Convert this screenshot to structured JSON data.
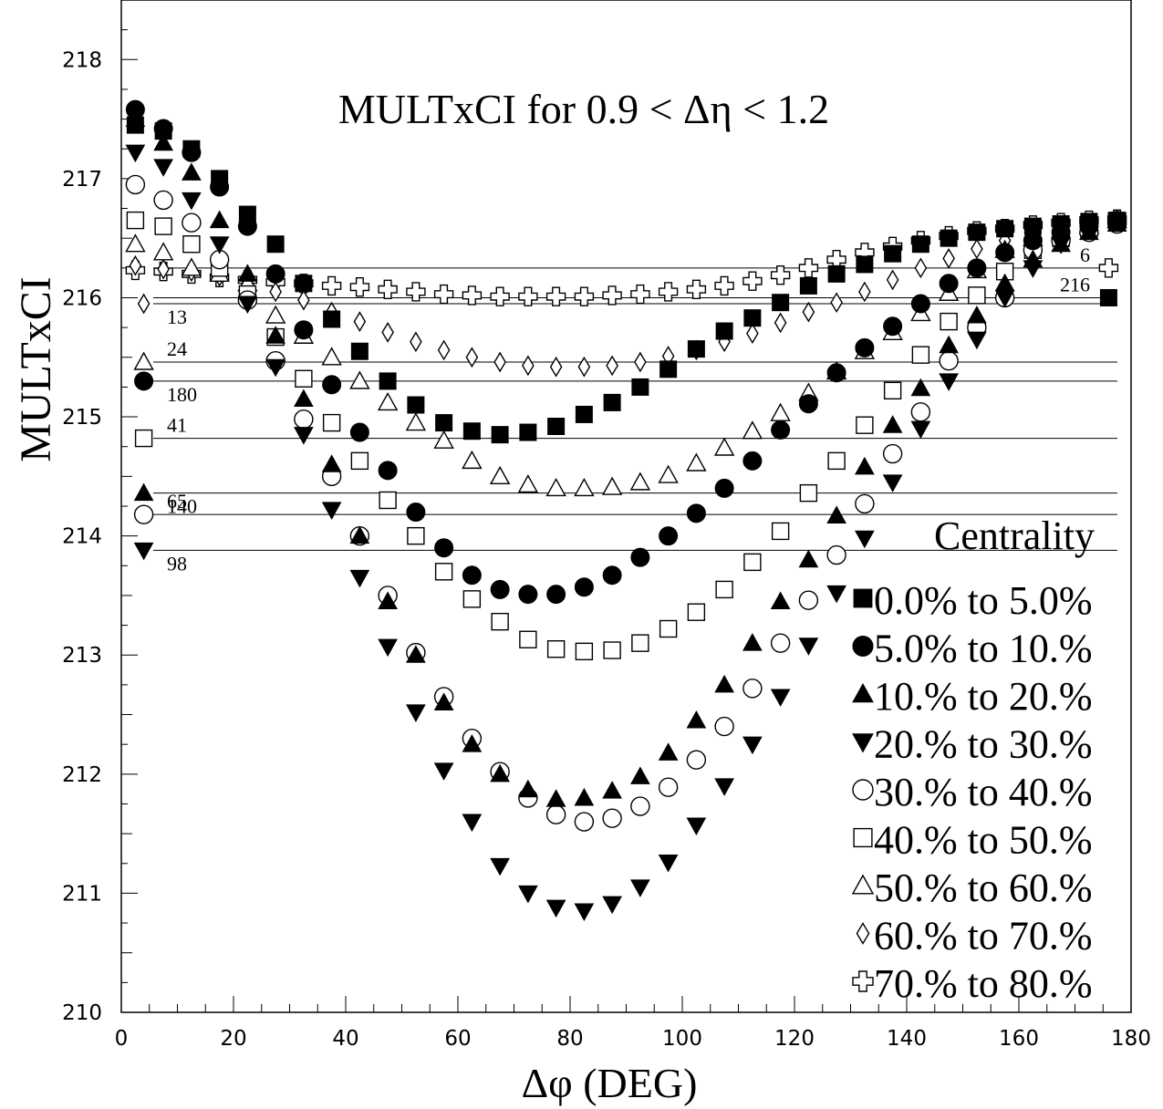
{
  "chart_data": {
    "type": "scatter",
    "title": "MULTxCI  for  0.9 < Δη < 1.2",
    "xlabel": "Δφ (DEG)",
    "ylabel": "MULTxCI",
    "xlim": [
      0,
      180
    ],
    "ylim": [
      210,
      218.5
    ],
    "x_ticks": [
      "0",
      "20",
      "40",
      "60",
      "80",
      "100",
      "120",
      "140",
      "160",
      "180"
    ],
    "y_ticks": [
      "210",
      "211",
      "212",
      "213",
      "214",
      "215",
      "216",
      "217",
      "218"
    ],
    "grid": false,
    "legend_title": "Centrality",
    "legend_position": "bottom-right",
    "x": [
      2.5,
      7.5,
      12.5,
      17.5,
      22.5,
      27.5,
      32.5,
      37.5,
      42.5,
      47.5,
      52.5,
      57.5,
      62.5,
      67.5,
      72.5,
      77.5,
      82.5,
      87.5,
      92.5,
      97.5,
      102.5,
      107.5,
      112.5,
      117.5,
      122.5,
      127.5,
      132.5,
      137.5,
      142.5,
      147.5,
      152.5,
      157.5,
      162.5,
      167.5,
      172.5,
      177.5
    ],
    "series": [
      {
        "name": "0.0% to 5.0%",
        "marker": "square-filled",
        "values": [
          217.45,
          217.4,
          217.25,
          217.0,
          216.7,
          216.45,
          216.12,
          215.82,
          215.55,
          215.3,
          215.1,
          214.95,
          214.88,
          214.85,
          214.87,
          214.92,
          215.02,
          215.12,
          215.25,
          215.4,
          215.57,
          215.72,
          215.83,
          215.96,
          216.1,
          216.2,
          216.28,
          216.37,
          216.45,
          216.5,
          216.55,
          216.58,
          216.6,
          216.62,
          216.64,
          216.65
        ]
      },
      {
        "name": "5.0% to 10.%",
        "marker": "circle-filled",
        "values": [
          217.58,
          217.42,
          217.22,
          216.93,
          216.6,
          216.2,
          215.73,
          215.27,
          214.87,
          214.55,
          214.2,
          213.9,
          213.67,
          213.55,
          213.51,
          213.51,
          213.57,
          213.67,
          213.82,
          214.0,
          214.19,
          214.4,
          214.63,
          214.89,
          215.11,
          215.37,
          215.58,
          215.76,
          215.95,
          216.12,
          216.25,
          216.38,
          216.48,
          216.55,
          216.6,
          216.65
        ]
      },
      {
        "name": "10.% to 20.%",
        "marker": "triangle-up-filled",
        "values": [
          217.5,
          217.3,
          217.05,
          216.65,
          216.2,
          215.68,
          215.15,
          214.6,
          214.0,
          213.45,
          213.0,
          212.6,
          212.25,
          212.0,
          211.87,
          211.79,
          211.8,
          211.86,
          211.98,
          212.18,
          212.45,
          212.75,
          213.1,
          213.45,
          213.8,
          214.17,
          214.58,
          214.93,
          215.24,
          215.6,
          215.85,
          216.12,
          216.32,
          216.45,
          216.55,
          216.62
        ]
      },
      {
        "name": "20.% to 30.%",
        "marker": "triangle-down-filled",
        "values": [
          217.22,
          217.1,
          216.82,
          216.45,
          215.95,
          215.42,
          214.85,
          214.22,
          213.65,
          213.07,
          212.52,
          212.03,
          211.6,
          211.23,
          211.0,
          210.88,
          210.85,
          210.91,
          211.05,
          211.26,
          211.57,
          211.9,
          212.25,
          212.65,
          213.08,
          213.52,
          213.98,
          214.45,
          214.9,
          215.3,
          215.65,
          216.0,
          216.25,
          216.45,
          216.58,
          216.65
        ]
      },
      {
        "name": "30.% to 40.%",
        "marker": "circle-open",
        "values": [
          216.95,
          216.82,
          216.63,
          216.32,
          215.98,
          215.47,
          214.98,
          214.5,
          214.0,
          213.5,
          213.02,
          212.65,
          212.3,
          212.02,
          211.8,
          211.66,
          211.6,
          211.63,
          211.73,
          211.89,
          212.12,
          212.4,
          212.72,
          213.1,
          213.46,
          213.84,
          214.27,
          214.69,
          215.04,
          215.47,
          215.75,
          216.0,
          216.4,
          216.48,
          216.55,
          216.62
        ]
      },
      {
        "name": "40.% to 50.%",
        "marker": "square-open",
        "values": [
          216.65,
          216.6,
          216.45,
          216.25,
          216.03,
          215.67,
          215.32,
          214.95,
          214.63,
          214.3,
          214.0,
          213.7,
          213.47,
          213.28,
          213.13,
          213.05,
          213.03,
          213.04,
          213.1,
          213.22,
          213.36,
          213.55,
          213.78,
          214.04,
          214.36,
          214.63,
          214.93,
          215.22,
          215.52,
          215.8,
          216.02,
          216.22,
          216.4,
          216.5,
          216.58,
          216.63
        ]
      },
      {
        "name": "50.% to 60.%",
        "marker": "triangle-up-open",
        "values": [
          216.45,
          216.38,
          216.25,
          216.2,
          216.12,
          215.85,
          215.68,
          215.5,
          215.3,
          215.12,
          214.95,
          214.8,
          214.63,
          214.5,
          214.43,
          214.4,
          214.4,
          214.41,
          214.45,
          214.51,
          214.61,
          214.74,
          214.88,
          215.03,
          215.2,
          215.38,
          215.55,
          215.71,
          215.87,
          216.04,
          216.23,
          216.4,
          216.5,
          216.56,
          216.6,
          216.65
        ]
      },
      {
        "name": "60.% to 70.%",
        "marker": "diamond-open",
        "values": [
          216.27,
          216.24,
          216.22,
          216.18,
          216.12,
          216.05,
          215.98,
          215.88,
          215.8,
          215.71,
          215.63,
          215.56,
          215.5,
          215.46,
          215.43,
          215.42,
          215.42,
          215.43,
          215.46,
          215.51,
          215.56,
          215.63,
          215.7,
          215.79,
          215.88,
          215.96,
          216.05,
          216.15,
          216.25,
          216.33,
          216.41,
          216.48,
          216.52,
          216.56,
          216.6,
          216.65
        ]
      },
      {
        "name": "70.% to 80.%",
        "marker": "cross-open",
        "values": [
          216.23,
          216.22,
          216.2,
          216.17,
          216.15,
          216.13,
          216.12,
          216.1,
          216.09,
          216.07,
          216.05,
          216.03,
          216.02,
          216.01,
          216.01,
          216.01,
          216.01,
          216.02,
          216.03,
          216.05,
          216.07,
          216.1,
          216.14,
          216.19,
          216.25,
          216.32,
          216.38,
          216.43,
          216.48,
          216.52,
          216.56,
          216.58,
          216.61,
          216.63,
          216.65,
          216.66
        ]
      }
    ],
    "extra_points": [
      {
        "x": 4,
        "y": 215.95,
        "marker": "diamond-open"
      },
      {
        "x": 4,
        "y": 215.46,
        "marker": "triangle-up-open"
      },
      {
        "x": 4,
        "y": 215.3,
        "marker": "circle-filled"
      },
      {
        "x": 4,
        "y": 214.82,
        "marker": "square-open"
      },
      {
        "x": 4,
        "y": 214.36,
        "marker": "triangle-up-filled"
      },
      {
        "x": 4,
        "y": 214.18,
        "marker": "circle-open"
      },
      {
        "x": 4,
        "y": 213.88,
        "marker": "triangle-down-filled"
      },
      {
        "x": 176,
        "y": 216.25,
        "marker": "cross-open"
      },
      {
        "x": 176,
        "y": 216.0,
        "marker": "square-filled"
      }
    ],
    "reference_lines": [
      {
        "y": 216.25,
        "label": "6",
        "label_side": "right"
      },
      {
        "y": 216.0,
        "label": "216",
        "label_side": "right"
      },
      {
        "y": 215.95,
        "label": "13",
        "label_side": "left"
      },
      {
        "y": 215.46,
        "label": "24",
        "label_side": "left"
      },
      {
        "y": 215.3,
        "label": "180",
        "label_side": "left"
      },
      {
        "y": 214.82,
        "label": "41",
        "label_side": "left"
      },
      {
        "y": 214.36,
        "label": "140",
        "label_side": "left"
      },
      {
        "y": 214.18,
        "label": "65",
        "label_side": "left"
      },
      {
        "y": 213.88,
        "label": "98",
        "label_side": "left"
      }
    ]
  }
}
